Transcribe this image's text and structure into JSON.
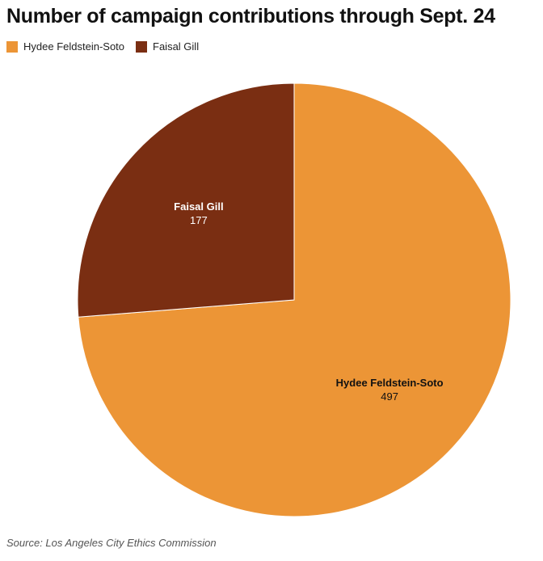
{
  "chart_data": {
    "type": "pie",
    "title": "Number of campaign contributions through Sept. 24",
    "categories": [
      "Hydee Feldstein-Soto",
      "Faisal Gill"
    ],
    "values": [
      497,
      177
    ],
    "colors": [
      "#EC9536",
      "#7A2E12"
    ],
    "legend": {
      "placement": "top-left",
      "entries": [
        "Hydee Feldstein-Soto",
        "Faisal Gill"
      ]
    },
    "data_labels": [
      "497",
      "177"
    ]
  },
  "source": "Source: Los Angeles City Ethics Commission"
}
